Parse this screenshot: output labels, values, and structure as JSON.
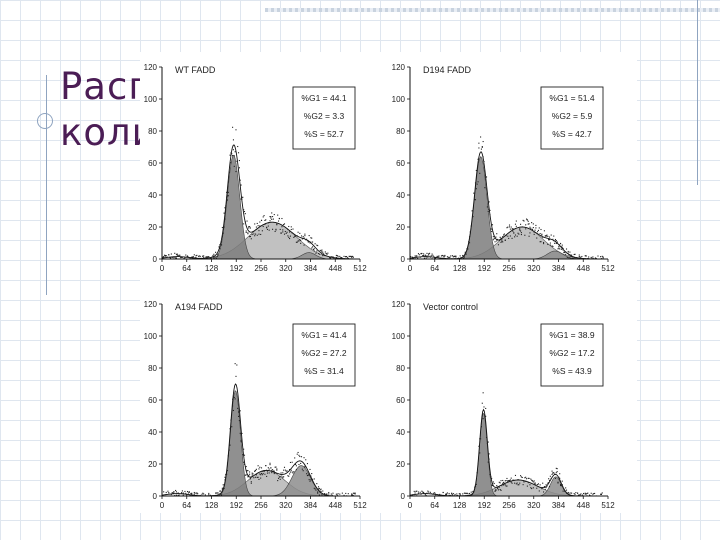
{
  "slide": {
    "title_partial": "Расп\nколи"
  },
  "chart_data": [
    {
      "type": "area",
      "title": "WT FADD",
      "xlabel": "",
      "ylabel": "",
      "xlim": [
        0,
        512
      ],
      "ylim": [
        0,
        120
      ],
      "xticks": [
        "0",
        "64",
        "128",
        "192",
        "256",
        "320",
        "384",
        "448",
        "512"
      ],
      "yticks": [
        "0",
        "20",
        "40",
        "60",
        "80",
        "100",
        "120"
      ],
      "stats": [
        "%G1 = 44.1",
        "%G2 = 3.3",
        "%S = 52.7"
      ],
      "components": [
        {
          "name": "G1",
          "mu": 185,
          "sd": 16,
          "amp": 65
        },
        {
          "name": "S",
          "mu": 285,
          "sd": 62,
          "amp": 23
        },
        {
          "name": "G2",
          "mu": 380,
          "sd": 18,
          "amp": 4
        }
      ]
    },
    {
      "type": "area",
      "title": "D194 FADD",
      "xlabel": "",
      "ylabel": "",
      "xlim": [
        0,
        512
      ],
      "ylim": [
        0,
        120
      ],
      "xticks": [
        "0",
        "64",
        "128",
        "192",
        "256",
        "320",
        "384",
        "448",
        "512"
      ],
      "yticks": [
        "0",
        "20",
        "40",
        "60",
        "80",
        "100",
        "120"
      ],
      "stats": [
        "%G1 = 51.4",
        "%G2 = 5.9",
        "%S = 42.7"
      ],
      "components": [
        {
          "name": "G1",
          "mu": 183,
          "sd": 16,
          "amp": 64
        },
        {
          "name": "S",
          "mu": 290,
          "sd": 55,
          "amp": 20
        },
        {
          "name": "G2",
          "mu": 375,
          "sd": 20,
          "amp": 5
        }
      ]
    },
    {
      "type": "area",
      "title": "A194 FADD",
      "xlabel": "",
      "ylabel": "",
      "xlim": [
        0,
        512
      ],
      "ylim": [
        0,
        120
      ],
      "xticks": [
        "0",
        "64",
        "128",
        "192",
        "256",
        "320",
        "384",
        "448",
        "512"
      ],
      "yticks": [
        "0",
        "20",
        "40",
        "60",
        "80",
        "100",
        "120"
      ],
      "stats": [
        "%G1 = 41.4",
        "%G2 = 27.2",
        "%S = 31.4"
      ],
      "components": [
        {
          "name": "G1",
          "mu": 190,
          "sd": 13,
          "amp": 66
        },
        {
          "name": "S",
          "mu": 270,
          "sd": 48,
          "amp": 16
        },
        {
          "name": "G2",
          "mu": 360,
          "sd": 24,
          "amp": 19
        }
      ]
    },
    {
      "type": "area",
      "title": "Vector control",
      "xlabel": "",
      "ylabel": "",
      "xlim": [
        0,
        512
      ],
      "ylim": [
        0,
        120
      ],
      "xticks": [
        "0",
        "64",
        "128",
        "192",
        "256",
        "320",
        "384",
        "448",
        "512"
      ],
      "yticks": [
        "0",
        "20",
        "40",
        "60",
        "80",
        "100",
        "120"
      ],
      "stats": [
        "%G1 = 38.9",
        "%G2 = 17.2",
        "%S = 43.9"
      ],
      "components": [
        {
          "name": "G1",
          "mu": 190,
          "sd": 10,
          "amp": 52
        },
        {
          "name": "S",
          "mu": 280,
          "sd": 50,
          "amp": 10
        },
        {
          "name": "G2",
          "mu": 377,
          "sd": 14,
          "amp": 12
        }
      ]
    }
  ]
}
